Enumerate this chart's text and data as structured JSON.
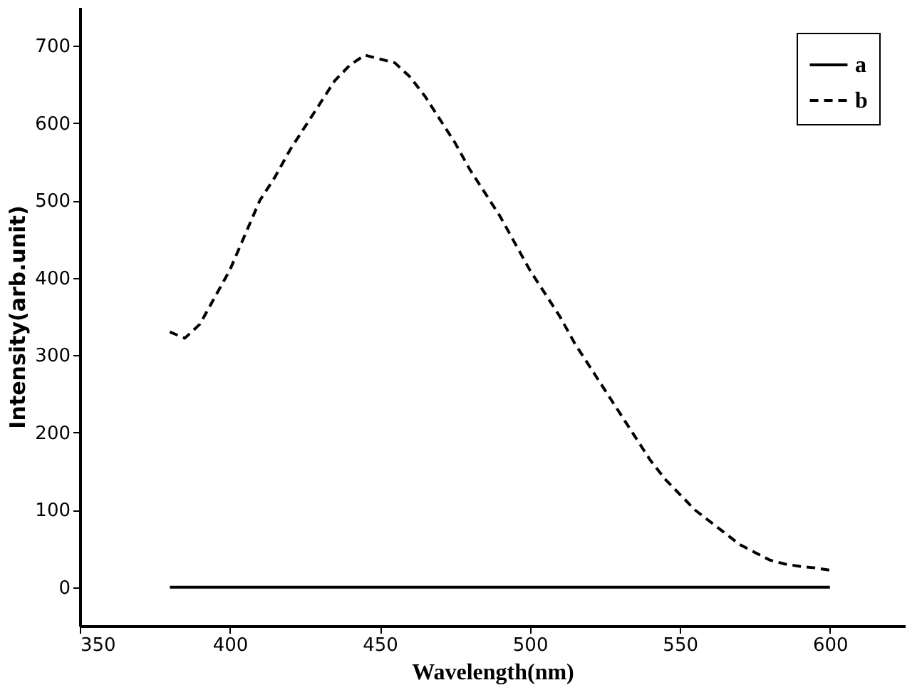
{
  "chart_data": {
    "type": "line",
    "xlabel": "Wavelength(nm)",
    "ylabel": "Intensity(arb.unit)",
    "xlim": [
      350,
      625
    ],
    "ylim": [
      -50,
      750
    ],
    "xticks": [
      350,
      400,
      450,
      500,
      550,
      600
    ],
    "yticks": [
      0,
      100,
      200,
      300,
      400,
      500,
      600,
      700
    ],
    "grid": false,
    "legend": "top right",
    "series": [
      {
        "name": "a",
        "color": "#000000",
        "line_style": "solid",
        "x": [
          380,
          600
        ],
        "values": [
          0,
          0
        ]
      },
      {
        "name": "b",
        "color": "#000000",
        "line_style": "dashed",
        "x": [
          380,
          385,
          390,
          395,
          400,
          405,
          410,
          415,
          420,
          425,
          430,
          435,
          440,
          445,
          450,
          455,
          460,
          465,
          470,
          475,
          480,
          485,
          490,
          495,
          500,
          505,
          510,
          515,
          520,
          525,
          530,
          535,
          540,
          545,
          550,
          555,
          560,
          565,
          570,
          575,
          580,
          585,
          590,
          595,
          600
        ],
        "values": [
          330,
          322,
          340,
          375,
          410,
          455,
          500,
          530,
          565,
          595,
          625,
          655,
          675,
          688,
          683,
          678,
          660,
          635,
          605,
          575,
          540,
          510,
          480,
          445,
          410,
          380,
          350,
          315,
          285,
          255,
          225,
          195,
          165,
          140,
          120,
          100,
          85,
          70,
          55,
          45,
          35,
          30,
          27,
          25,
          22
        ]
      }
    ]
  }
}
